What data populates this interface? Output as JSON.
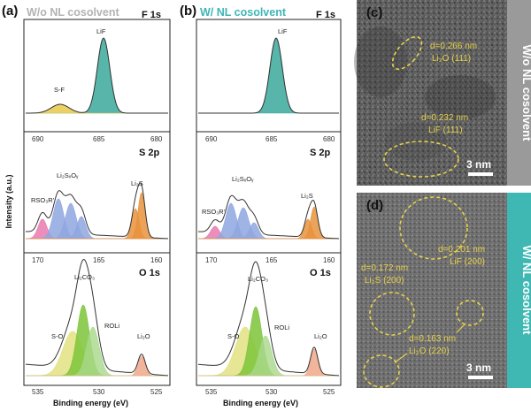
{
  "panels": {
    "a": {
      "label": "(a)",
      "title": "W/o NL cosolvent",
      "title_color": "#b3b3b3"
    },
    "b": {
      "label": "(b)",
      "title": "W/ NL cosolvent",
      "title_color": "#40b5b5"
    },
    "c": {
      "label": "(c)"
    },
    "d": {
      "label": "(d)"
    }
  },
  "xps": {
    "y_axis_label": "Intensity (a.u.)",
    "x_axis_label": "Binding energy (eV)",
    "rows": [
      {
        "core": "F 1s",
        "ticks": [
          "690",
          "685",
          "680"
        ],
        "a_labels": {
          "peak1": "LiF",
          "peak2": "S-F"
        },
        "b_labels": {
          "peak1": "LiF"
        }
      },
      {
        "core": "S 2p",
        "ticks": [
          "170",
          "165",
          "160"
        ],
        "a_labels": {
          "rso": "RSO₃R'",
          "li2sxoy": "Li₂SₓOᵧ",
          "li2s": "Li₂S"
        },
        "b_labels": {
          "rso": "RSO₃R'",
          "li2sxoy": "Li₂SₓOᵧ",
          "li2s": "Li₂S"
        }
      },
      {
        "core": "O 1s",
        "ticks": [
          "535",
          "530",
          "525"
        ],
        "a_labels": {
          "li2co3": "Li₂CO₃",
          "so": "S-O",
          "roli": "ROLi",
          "li2o": "Li₂O"
        },
        "b_labels": {
          "li2co3": "Li₂CO₃",
          "so": "S-O",
          "roli": "ROLi",
          "li2o": "Li₂O"
        }
      }
    ],
    "colors": {
      "lif": "#3aa89a",
      "s_f": "#e8c84a",
      "rso": "#e87ab0",
      "li2sxoy": "#8fa6e0",
      "li2s": "#e8923c",
      "li2co3": "#7cc43a",
      "s_o": "#e0e07a",
      "roli": "#a8d88a",
      "li2o": "#f0a88a"
    }
  },
  "tem": {
    "c": {
      "side_label": "W/o NL cosolvent",
      "side_color": "#9a9a9a",
      "annotations": [
        {
          "d": "d=0.266 nm",
          "phase": "Li₂O (111)"
        },
        {
          "d": "d=0.232 nm",
          "phase": "LiF (111)"
        }
      ],
      "scale": "3 nm"
    },
    "d": {
      "side_label": "W/ NL cosolvent",
      "side_color": "#3fb8b4",
      "annotations": [
        {
          "d": "d=0.201 nm",
          "phase": "LiF (200)"
        },
        {
          "d": "d=0.172 nm",
          "phase": "Li₂S (200)"
        },
        {
          "d": "d=0.163 nm",
          "phase": "Li₂O (220)"
        }
      ],
      "scale": "3 nm"
    }
  }
}
